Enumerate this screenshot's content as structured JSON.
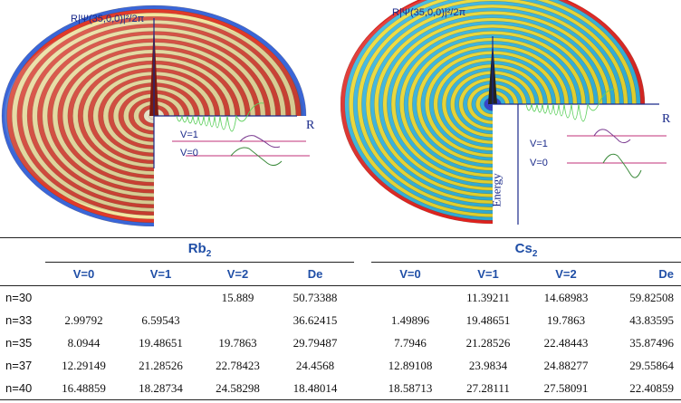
{
  "figure_left": {
    "axis_title": "R|Ψ(35,0,0)|²/2π",
    "r_label": "R",
    "v1_label": "V=1",
    "v0_label": "V=0",
    "colors": {
      "outer": "#3a66d8",
      "band_a": "#f4e6a0",
      "band_b": "#e03a2a",
      "inner": "#fff8d8"
    }
  },
  "figure_right": {
    "axis_title": "R|Ψ(35,0,0)|²/2π",
    "r_label": "R",
    "v1_label": "V=1",
    "v0_label": "V=0",
    "energy_label": "Energy",
    "colors": {
      "outer": "#e4201c",
      "band_a": "#f4e028",
      "band_b": "#2bb7e6",
      "inner": "#2a3ad8"
    }
  },
  "table": {
    "molecules": [
      {
        "name": "Rb",
        "subscript": "2"
      },
      {
        "name": "Cs",
        "subscript": "2"
      }
    ],
    "headers": [
      "V=0",
      "V=1",
      "V=2",
      "De",
      "V=0",
      "V=1",
      "V=2",
      "De"
    ],
    "rows": [
      {
        "label": "n=30",
        "values": [
          "",
          "",
          "15.889",
          "50.73388",
          "",
          "11.39211",
          "14.68983",
          "59.82508"
        ]
      },
      {
        "label": "n=33",
        "values": [
          "2.99792",
          "6.59543",
          "",
          "36.62415",
          "1.49896",
          "19.48651",
          "19.7863",
          "43.83595"
        ]
      },
      {
        "label": "n=35",
        "values": [
          "8.0944",
          "19.48651",
          "19.7863",
          "29.79487",
          "7.7946",
          "21.28526",
          "22.48443",
          "35.87496"
        ]
      },
      {
        "label": "n=37",
        "values": [
          "12.29149",
          "21.28526",
          "22.78423",
          "24.4568",
          "12.89108",
          "23.9834",
          "24.88277",
          "29.55864"
        ]
      },
      {
        "label": "n=40",
        "values": [
          "16.48859",
          "18.28734",
          "24.58298",
          "18.48014",
          "18.58713",
          "27.28111",
          "27.58091",
          "22.40859"
        ]
      }
    ]
  }
}
